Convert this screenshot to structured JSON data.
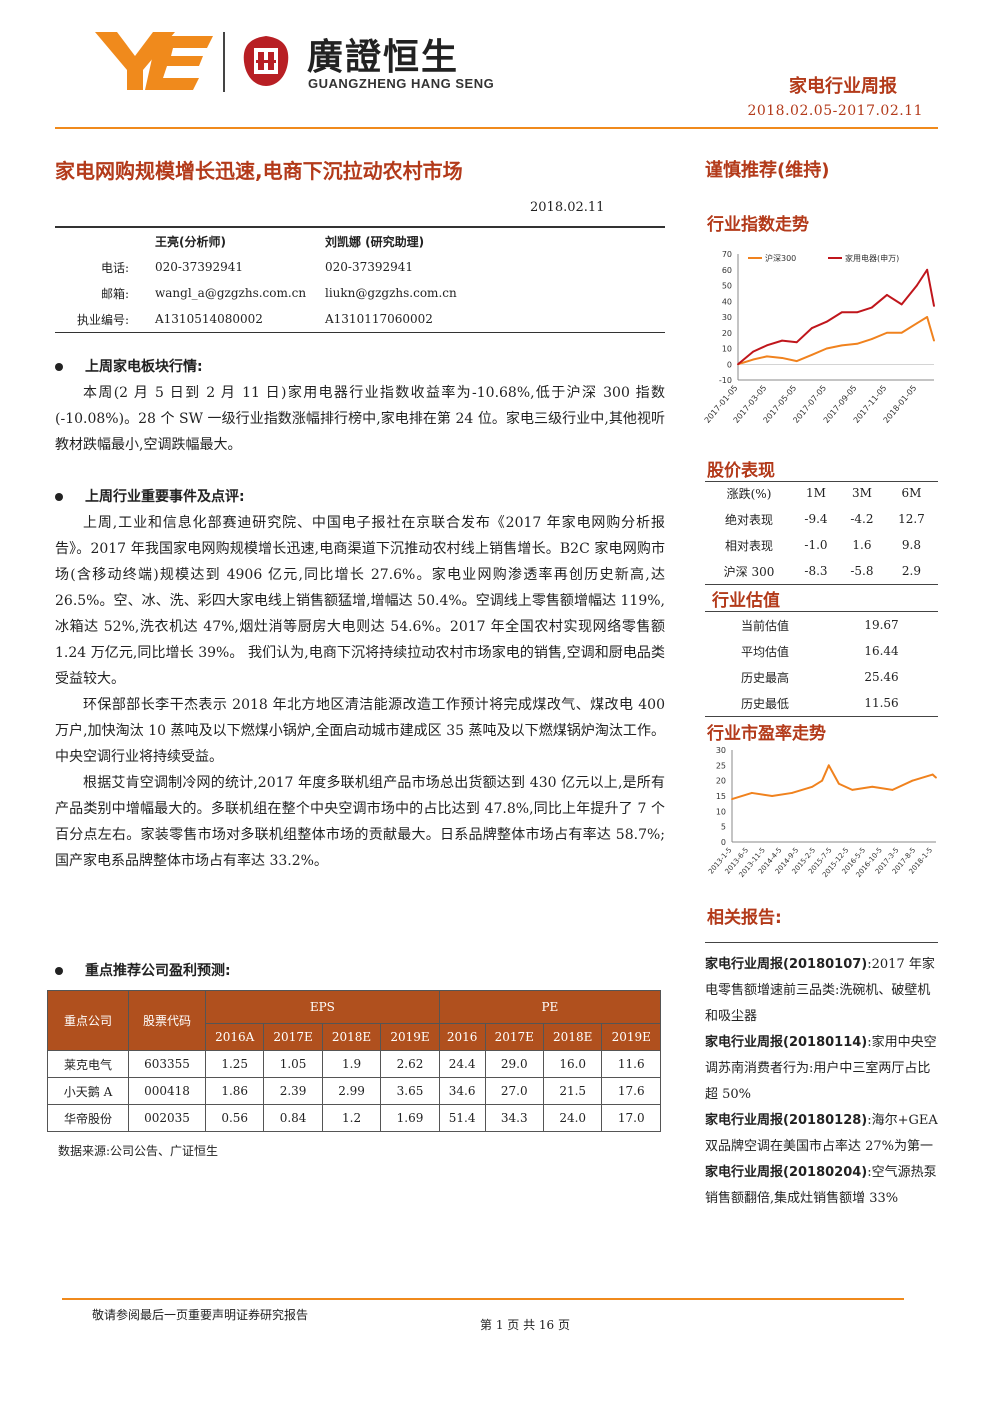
{
  "header": {
    "logo_cn": "廣證恒生",
    "logo_en": "GUANGZHENG HANG SENG",
    "report_type": "家电行业周报",
    "date_range": "2018.02.05-2017.02.11"
  },
  "title": "家电网购规模增长迅速,电商下沉拉动农村市场",
  "rating": "谨慎推荐(维持)",
  "report_date": "2018.02.11",
  "analysts": {
    "names": [
      "王亮(分析师)",
      "刘凯娜 (研究助理)"
    ],
    "rows": [
      {
        "label": "电话:",
        "a": "020-37392941",
        "b": "020-37392941"
      },
      {
        "label": "邮箱:",
        "a": "wangl_a@gzgzhs.com.cn",
        "b": "liukn@gzgzhs.com.cn"
      },
      {
        "label": "执业编号:",
        "a": "A1310514080002",
        "b": "A1310117060002"
      }
    ]
  },
  "sections": {
    "s1_title": "上周家电板块行情:",
    "s1_p1": "本周(2 月 5 日到 2 月 11 日)家用电器行业指数收益率为-10.68%,低于沪深 300 指数(-10.08%)。28 个 SW 一级行业指数涨幅排行榜中,家电排在第 24 位。家电三级行业中,其他视听教材跌幅最小,空调跌幅最大。",
    "s2_title": "上周行业重要事件及点评:",
    "s2_p1": "上周,工业和信息化部赛迪研究院、中国电子报社在京联合发布《2017 年家电网购分析报告》。2017 年我国家电网购规模增长迅速,电商渠道下沉推动农村线上销售增长。B2C 家电网购市场(含移动终端)规模达到 4906 亿元,同比增长 27.6%。家电业网购渗透率再创历史新高,达 26.5%。空、冰、洗、彩四大家电线上销售额猛增,增幅达 50.4%。空调线上零售额增幅达 119%,冰箱达 52%,洗衣机达 47%,烟灶消等厨房大电则达 54.6%。2017 年全国农村实现网络零售额 1.24 万亿元,同比增长 39%。 我们认为,电商下沉将持续拉动农村市场家电的销售,空调和厨电品类受益较大。",
    "s2_p2": "环保部部长李干杰表示 2018 年北方地区清洁能源改造工作预计将完成煤改气、煤改电 400 万户,加快淘汰 10 蒸吨及以下燃煤小锅炉,全面启动城市建成区 35 蒸吨及以下燃煤锅炉淘汰工作。中央空调行业将持续受益。",
    "s2_p3": "根据艾肯空调制冷网的统计,2017 年度多联机组产品市场总出货额达到 430 亿元以上,是所有产品类别中增幅最大的。多联机组在整个中央空调市场中的占比达到 47.8%,同比上年提升了 7 个百分点左右。家装零售市场对多联机组整体市场的贡献最大。日系品牌整体市场占有率达 58.7%;国产家电系品牌整体市场占有率达 33.2%。",
    "s3_title": "重点推荐公司盈利预测:"
  },
  "eps_table": {
    "h_company": "重点公司",
    "h_code": "股票代码",
    "h_eps": "EPS",
    "h_pe": "PE",
    "years_eps": [
      "2016A",
      "2017E",
      "2018E",
      "2019E"
    ],
    "years_pe": [
      "2016",
      "2017E",
      "2018E",
      "2019E"
    ],
    "rows": [
      {
        "name": "莱克电气",
        "code": "603355",
        "eps": [
          "1.25",
          "1.05",
          "1.9",
          "2.62"
        ],
        "pe": [
          "24.4",
          "29.0",
          "16.0",
          "11.6"
        ]
      },
      {
        "name": "小天鹅 A",
        "code": "000418",
        "eps": [
          "1.86",
          "2.39",
          "2.99",
          "3.65"
        ],
        "pe": [
          "34.6",
          "27.0",
          "21.5",
          "17.6"
        ]
      },
      {
        "name": "华帝股份",
        "code": "002035",
        "eps": [
          "0.56",
          "0.84",
          "1.2",
          "1.69"
        ],
        "pe": [
          "51.4",
          "34.3",
          "24.0",
          "17.0"
        ]
      }
    ],
    "source": "数据来源:公司公告、广证恒生"
  },
  "right": {
    "index_title": "行业指数走势",
    "price_title": "股价表现",
    "price_head": [
      "涨跌(%)",
      "1M",
      "3M",
      "6M"
    ],
    "price_rows": [
      [
        "绝对表现",
        "-9.4",
        "-4.2",
        "12.7"
      ],
      [
        "相对表现",
        "-1.0",
        "1.6",
        "9.8"
      ],
      [
        "沪深 300",
        "-8.3",
        "-5.8",
        "2.9"
      ]
    ],
    "val_title": "行业估值",
    "val_rows": [
      [
        "当前估值",
        "19.67"
      ],
      [
        "平均估值",
        "16.44"
      ],
      [
        "历史最高",
        "25.46"
      ],
      [
        "历史最低",
        "11.56"
      ]
    ],
    "pe_title": "行业市盈率走势",
    "related_title": "相关报告:",
    "related": [
      {
        "bold": "家电行业周报(20180107)",
        "text": ":2017 年家电零售额增速前三品类:洗碗机、破壁机和吸尘器"
      },
      {
        "bold": "家电行业周报(20180114)",
        "text": ":家用中央空调苏南消费者行为:用户中三室两厅占比超 50%"
      },
      {
        "bold": "家电行业周报(20180128)",
        "text": ":海尔+GEA 双品牌空调在美国市占率达 27%为第一"
      },
      {
        "bold": "家电行业周报(20180204)",
        "text": ":空气源热泵销售额翻倍,集成灶销售额增 33%"
      }
    ]
  },
  "footer": {
    "left": "敬请参阅最后一页重要声明证券研究报告",
    "page": "第 1 页 共 16 页"
  },
  "chart_data": [
    {
      "type": "line",
      "series": [
        {
          "name": "沪深300",
          "color": "#f0821e",
          "x": [
            "2017-01-05",
            "2017-02-05",
            "2017-03-05",
            "2017-04-05",
            "2017-05-05",
            "2017-06-05",
            "2017-07-05",
            "2017-08-05",
            "2017-09-05",
            "2017-10-05",
            "2017-11-05",
            "2017-12-05",
            "2018-01-05",
            "2018-01-26",
            "2018-02-09"
          ],
          "values": [
            0,
            3,
            5,
            4,
            2,
            6,
            10,
            12,
            13,
            16,
            20,
            20,
            26,
            30,
            15
          ]
        },
        {
          "name": "家用电器(申万)",
          "color": "#c0161c",
          "x": [
            "2017-01-05",
            "2017-02-05",
            "2017-03-05",
            "2017-04-05",
            "2017-05-05",
            "2017-06-05",
            "2017-07-05",
            "2017-08-05",
            "2017-09-05",
            "2017-10-05",
            "2017-11-05",
            "2017-12-05",
            "2018-01-05",
            "2018-01-26",
            "2018-02-09"
          ],
          "values": [
            0,
            8,
            12,
            15,
            14,
            23,
            27,
            33,
            33,
            36,
            44,
            38,
            50,
            60,
            37
          ]
        }
      ],
      "x_ticks": [
        "2017-01-05",
        "2017-03-05",
        "2017-05-05",
        "2017-07-05",
        "2017-09-05",
        "2017-11-05",
        "2018-01-05"
      ],
      "ylim": [
        -10,
        70
      ],
      "y_ticks": [
        -10,
        0,
        10,
        20,
        30,
        40,
        50,
        60,
        70
      ],
      "legend": "top"
    },
    {
      "type": "line",
      "series": [
        {
          "name": "",
          "color": "#f0821e",
          "x": [
            "2013-01-05",
            "2013-07-05",
            "2014-01-05",
            "2014-07-05",
            "2015-01-05",
            "2015-04-05",
            "2015-06-05",
            "2015-09-05",
            "2016-01-05",
            "2016-07-05",
            "2017-01-05",
            "2017-07-05",
            "2018-01-05",
            "2018-02-05"
          ],
          "values": [
            14,
            16,
            15,
            16,
            18,
            20,
            25,
            19,
            17,
            18,
            17,
            20,
            22,
            21
          ]
        }
      ],
      "x_ticks": [
        "2013-1-5",
        "2013-6-5",
        "2013-11-5",
        "2014-4-5",
        "2014-9-5",
        "2015-2-5",
        "2015-7-5",
        "2015-12-5",
        "2016-5-5",
        "2016-10-5",
        "2017-3-5",
        "2017-8-5",
        "2018-1-5"
      ],
      "ylim": [
        0,
        30
      ],
      "y_ticks": [
        0,
        5,
        10,
        15,
        20,
        25,
        30
      ]
    }
  ]
}
